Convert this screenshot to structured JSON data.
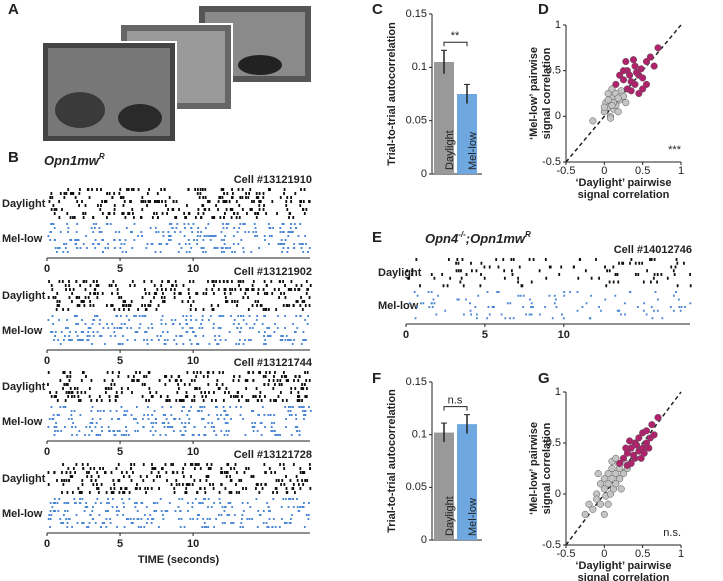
{
  "panel_labels": [
    "A",
    "B",
    "C",
    "D",
    "E",
    "F",
    "G"
  ],
  "chart_data": [
    {
      "type": "raster",
      "title": "Opn1mw",
      "title_superscript": "R",
      "cells": [
        "Cell #13121910",
        "Cell #13121902",
        "Cell #13121744",
        "Cell #13121728"
      ],
      "series": [
        {
          "name": "Daylight",
          "color": "#111111"
        },
        {
          "name": "Mel-low",
          "color": "#4a86d4"
        }
      ],
      "xlim": [
        0,
        18
      ],
      "xticks": [
        0,
        5,
        10
      ],
      "xlabel": "TIME (seconds)"
    },
    {
      "type": "bar",
      "ylabel": "Trial-to-trial autocorrelation",
      "categories": [
        "Daylight",
        "Mel-low"
      ],
      "values": [
        0.105,
        0.075
      ],
      "errors": [
        0.011,
        0.009
      ],
      "colors": [
        "#999999",
        "#6fa8e0"
      ],
      "ylim": [
        0,
        0.15
      ],
      "yticks": [
        0,
        0.05,
        0.1,
        0.15
      ],
      "annotation": "**"
    },
    {
      "type": "scatter",
      "xlabel": [
        "‘Daylight’ pairwise",
        "signal correlation"
      ],
      "ylabel": [
        "‘Mel-low’ pairwise",
        "signal correlation"
      ],
      "xlim": [
        -0.5,
        1
      ],
      "ylim": [
        -0.5,
        1
      ],
      "xticks": [
        -0.5,
        0,
        0.5,
        1
      ],
      "yticks": [
        -0.5,
        0,
        0.5,
        1
      ],
      "annotation": "***",
      "series": [
        {
          "color": "#c4c4c4",
          "x": [
            -0.15,
            0.0,
            0.02,
            0.05,
            0.08,
            0.1,
            0.12,
            0.15,
            0.05,
            0.1,
            0.2,
            0.18,
            0.25,
            0.08,
            0.0,
            0.12,
            0.22,
            0.15,
            0.05,
            0.28,
            0.1,
            0.18
          ],
          "y": [
            -0.05,
            0.05,
            0.15,
            0.1,
            0.0,
            0.2,
            0.08,
            0.12,
            0.25,
            0.3,
            0.18,
            0.05,
            0.22,
            -0.02,
            0.1,
            0.15,
            0.28,
            0.25,
            0.18,
            0.15,
            0.12,
            0.2
          ]
        },
        {
          "color": "#b0226b",
          "x": [
            0.15,
            0.2,
            0.25,
            0.3,
            0.35,
            0.4,
            0.45,
            0.5,
            0.55,
            0.3,
            0.35,
            0.4,
            0.45,
            0.25,
            0.5,
            0.6,
            0.65,
            0.7,
            0.42,
            0.38,
            0.28,
            0.55,
            0.33,
            0.48
          ],
          "y": [
            0.35,
            0.45,
            0.4,
            0.5,
            0.38,
            0.55,
            0.45,
            0.42,
            0.6,
            0.3,
            0.28,
            0.35,
            0.25,
            0.5,
            0.3,
            0.65,
            0.55,
            0.75,
            0.48,
            0.62,
            0.6,
            0.35,
            0.45,
            0.52
          ]
        }
      ]
    },
    {
      "type": "raster",
      "title": "Opn4",
      "title_superscript": "-/-",
      "title_rest": ";Opn1mw",
      "title_rest_superscript": "R",
      "cells": [
        "Cell #14012746"
      ],
      "series": [
        {
          "name": "Daylight",
          "color": "#111111"
        },
        {
          "name": "Mel-low",
          "color": "#4a86d4"
        }
      ],
      "xlim": [
        0,
        18
      ],
      "xticks": [
        0,
        5,
        10
      ]
    },
    {
      "type": "bar",
      "ylabel": "Trial-to-trial autocorrelation",
      "categories": [
        "Daylight",
        "Mel-low"
      ],
      "values": [
        0.102,
        0.11
      ],
      "errors": [
        0.009,
        0.009
      ],
      "colors": [
        "#999999",
        "#6fa8e0"
      ],
      "ylim": [
        0,
        0.15
      ],
      "yticks": [
        0,
        0.05,
        0.1,
        0.15
      ],
      "annotation": "n.s"
    },
    {
      "type": "scatter",
      "xlabel": [
        "‘Daylight’ pairwise",
        "signal correlation"
      ],
      "ylabel": [
        "‘Mel-low’ pairwise",
        "signal correlation"
      ],
      "xlim": [
        -0.5,
        1
      ],
      "ylim": [
        -0.5,
        1
      ],
      "xticks": [
        -0.5,
        0,
        0.5,
        1
      ],
      "yticks": [
        -0.5,
        0,
        0.5,
        1
      ],
      "annotation": "n.s.",
      "series": [
        {
          "color": "#c4c4c4",
          "x": [
            -0.25,
            -0.2,
            -0.15,
            -0.1,
            -0.1,
            -0.05,
            -0.05,
            0.0,
            0.0,
            0.02,
            0.05,
            0.05,
            0.08,
            0.1,
            0.1,
            0.12,
            0.15,
            0.15,
            0.18,
            0.2,
            0.2,
            0.22,
            0.25,
            0.28,
            0.3,
            0.0,
            0.1,
            -0.08,
            0.15,
            0.05
          ],
          "y": [
            -0.2,
            -0.1,
            -0.15,
            0.0,
            -0.05,
            0.1,
            -0.1,
            0.05,
            0.15,
            -0.02,
            0.1,
            0.2,
            0.0,
            0.15,
            0.25,
            0.05,
            0.2,
            0.1,
            0.3,
            0.15,
            0.25,
            0.05,
            0.2,
            0.3,
            0.25,
            -0.2,
            0.32,
            0.2,
            0.35,
            -0.1
          ]
        },
        {
          "color": "#b0226b",
          "x": [
            0.2,
            0.25,
            0.3,
            0.3,
            0.35,
            0.35,
            0.4,
            0.4,
            0.45,
            0.45,
            0.5,
            0.5,
            0.55,
            0.55,
            0.6,
            0.62,
            0.65,
            0.7,
            0.38,
            0.28,
            0.48,
            0.42,
            0.33,
            0.52,
            0.58
          ],
          "y": [
            0.3,
            0.35,
            0.4,
            0.28,
            0.45,
            0.3,
            0.5,
            0.35,
            0.42,
            0.55,
            0.45,
            0.6,
            0.5,
            0.62,
            0.55,
            0.68,
            0.58,
            0.75,
            0.38,
            0.45,
            0.35,
            0.48,
            0.52,
            0.4,
            0.45
          ]
        }
      ]
    }
  ]
}
